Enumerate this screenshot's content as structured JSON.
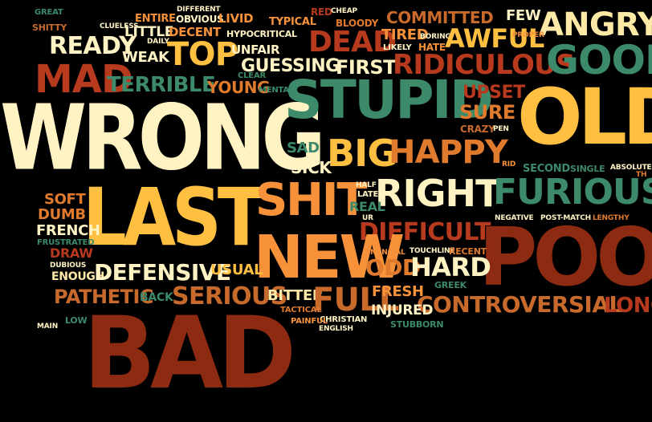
{
  "palette": {
    "cream": "#fff3c4",
    "light_yellow": "#ffe9a6",
    "yellow": "#ffbf40",
    "orange": "#f7923a",
    "dark_orange": "#e07b2e",
    "brown_orange": "#c86a2c",
    "red_brown": "#b83a1e",
    "dark_red": "#8c2a12",
    "green": "#3c8a6a",
    "tan": "#d39b55"
  },
  "words": [
    {
      "text": "great",
      "color": "green"
    },
    {
      "text": "shitty",
      "color": "brown_orange"
    },
    {
      "text": "clueless",
      "color": "cream"
    },
    {
      "text": "entire",
      "color": "orange"
    },
    {
      "text": "different",
      "color": "cream"
    },
    {
      "text": "obvious",
      "color": "cream"
    },
    {
      "text": "livid",
      "color": "orange"
    },
    {
      "text": "typical",
      "color": "orange"
    },
    {
      "text": "red",
      "color": "red_brown"
    },
    {
      "text": "cheap",
      "color": "cream"
    },
    {
      "text": "bloody",
      "color": "dark_orange"
    },
    {
      "text": "committed",
      "color": "brown_orange"
    },
    {
      "text": "few",
      "color": "cream"
    },
    {
      "text": "angry",
      "color": "light_yellow"
    },
    {
      "text": "ready",
      "color": "cream"
    },
    {
      "text": "little",
      "color": "cream"
    },
    {
      "text": "daily",
      "color": "cream"
    },
    {
      "text": "decent",
      "color": "orange"
    },
    {
      "text": "hypocritical",
      "color": "cream"
    },
    {
      "text": "dead",
      "color": "red_brown"
    },
    {
      "text": "tired",
      "color": "orange"
    },
    {
      "text": "boring",
      "color": "cream"
    },
    {
      "text": "awful",
      "color": "yellow"
    },
    {
      "text": "proper",
      "color": "orange"
    },
    {
      "text": "hate",
      "color": "orange"
    },
    {
      "text": "likely",
      "color": "cream"
    },
    {
      "text": "mad",
      "color": "red_brown"
    },
    {
      "text": "weak",
      "color": "cream"
    },
    {
      "text": "top",
      "color": "yellow"
    },
    {
      "text": "unfair",
      "color": "cream"
    },
    {
      "text": "guessing",
      "color": "cream"
    },
    {
      "text": "first",
      "color": "cream"
    },
    {
      "text": "ridiculous",
      "color": "red_brown"
    },
    {
      "text": "good",
      "color": "green"
    },
    {
      "text": "terrible",
      "color": "green"
    },
    {
      "text": "young",
      "color": "dark_orange"
    },
    {
      "text": "clear",
      "color": "green"
    },
    {
      "text": "mental",
      "color": "green"
    },
    {
      "text": "wrong",
      "color": "cream"
    },
    {
      "text": "stupid",
      "color": "green"
    },
    {
      "text": "upset",
      "color": "red_brown"
    },
    {
      "text": "old",
      "color": "yellow"
    },
    {
      "text": "sure",
      "color": "dark_orange"
    },
    {
      "text": "crazy",
      "color": "brown_orange"
    },
    {
      "text": "pen",
      "color": "cream"
    },
    {
      "text": "sad",
      "color": "green"
    },
    {
      "text": "big",
      "color": "yellow"
    },
    {
      "text": "happy",
      "color": "dark_orange"
    },
    {
      "text": "sick",
      "color": "cream"
    },
    {
      "text": "rid",
      "color": "orange"
    },
    {
      "text": "second",
      "color": "green"
    },
    {
      "text": "single",
      "color": "green"
    },
    {
      "text": "absolute",
      "color": "cream"
    },
    {
      "text": "th",
      "color": "dark_orange"
    },
    {
      "text": "last",
      "color": "yellow"
    },
    {
      "text": "shit",
      "color": "orange"
    },
    {
      "text": "half",
      "color": "cream"
    },
    {
      "text": "right",
      "color": "cream"
    },
    {
      "text": "furious",
      "color": "green"
    },
    {
      "text": "soft",
      "color": "dark_orange"
    },
    {
      "text": "late",
      "color": "cream"
    },
    {
      "text": "dumb",
      "color": "dark_orange"
    },
    {
      "text": "real",
      "color": "green"
    },
    {
      "text": "ur",
      "color": "cream"
    },
    {
      "text": "negative",
      "color": "cream"
    },
    {
      "text": "post-match",
      "color": "cream"
    },
    {
      "text": "lengthy",
      "color": "dark_orange"
    },
    {
      "text": "french",
      "color": "cream"
    },
    {
      "text": "difficult",
      "color": "red_brown"
    },
    {
      "text": "frustrated",
      "color": "green"
    },
    {
      "text": "new",
      "color": "orange"
    },
    {
      "text": "poor",
      "color": "dark_red"
    },
    {
      "text": "draw",
      "color": "red_brown"
    },
    {
      "text": "financial",
      "color": "orange"
    },
    {
      "text": "touchline",
      "color": "cream"
    },
    {
      "text": "recent",
      "color": "dark_orange"
    },
    {
      "text": "dubious",
      "color": "cream"
    },
    {
      "text": "odd",
      "color": "dark_orange"
    },
    {
      "text": "hard",
      "color": "cream"
    },
    {
      "text": "enough",
      "color": "light_yellow"
    },
    {
      "text": "defensive",
      "color": "cream"
    },
    {
      "text": "usual",
      "color": "yellow"
    },
    {
      "text": "greek",
      "color": "green"
    },
    {
      "text": "pathetic",
      "color": "brown_orange"
    },
    {
      "text": "serious",
      "color": "brown_orange"
    },
    {
      "text": "bitter",
      "color": "light_yellow"
    },
    {
      "text": "full",
      "color": "brown_orange"
    },
    {
      "text": "fresh",
      "color": "orange"
    },
    {
      "text": "back",
      "color": "green"
    },
    {
      "text": "controversial",
      "color": "brown_orange"
    },
    {
      "text": "long",
      "color": "red_brown"
    },
    {
      "text": "injured",
      "color": "cream"
    },
    {
      "text": "tactical",
      "color": "dark_orange"
    },
    {
      "text": "christian",
      "color": "cream"
    },
    {
      "text": "painful",
      "color": "orange"
    },
    {
      "text": "main",
      "color": "cream"
    },
    {
      "text": "low",
      "color": "green"
    },
    {
      "text": "english",
      "color": "cream"
    },
    {
      "text": "stubborn",
      "color": "green"
    },
    {
      "text": "bad",
      "color": "dark_red"
    }
  ]
}
